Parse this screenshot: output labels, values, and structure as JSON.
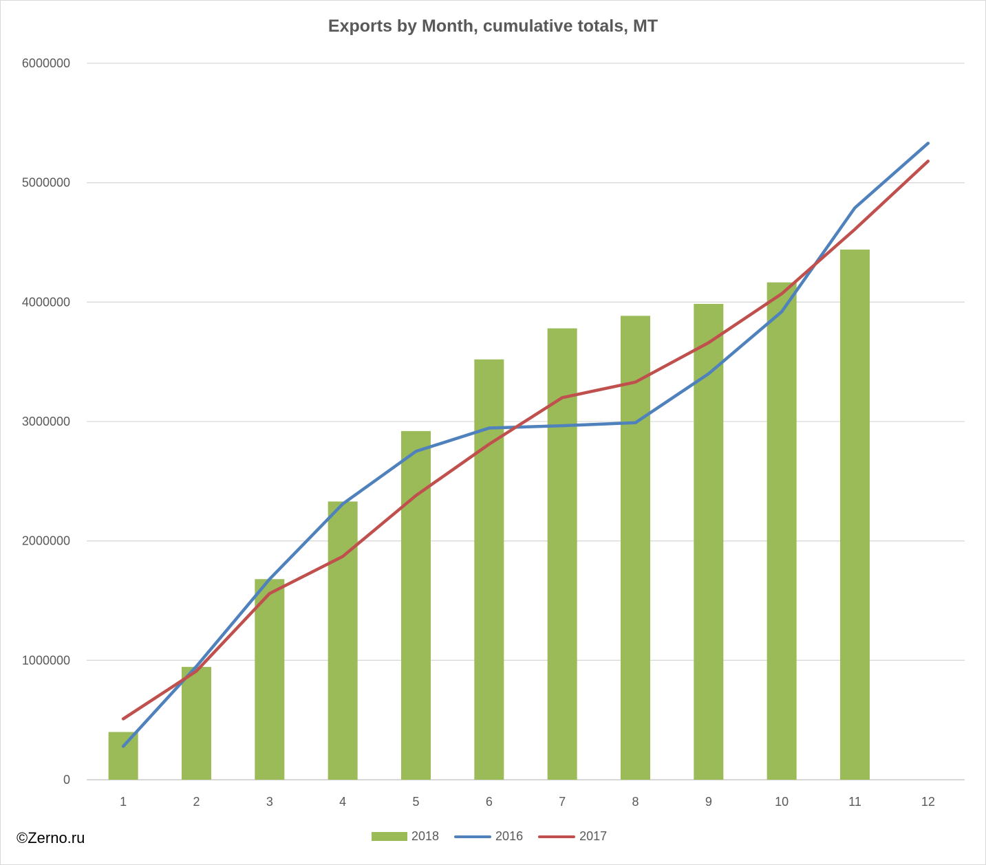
{
  "chart_data": {
    "type": "bar",
    "title": "Exports by Month, cumulative totals, MT",
    "xlabel": "",
    "ylabel": "",
    "categories": [
      "1",
      "2",
      "3",
      "4",
      "5",
      "6",
      "7",
      "8",
      "9",
      "10",
      "11",
      "12"
    ],
    "ylim": [
      0,
      6000000
    ],
    "yticks": [
      "0",
      "1000000",
      "2000000",
      "3000000",
      "4000000",
      "5000000",
      "6000000"
    ],
    "grid": true,
    "legend_position": "bottom",
    "series": [
      {
        "name": "2018",
        "kind": "bar",
        "color": "#9bbb59",
        "values": [
          400000,
          945000,
          1680000,
          2330000,
          2920000,
          3520000,
          3780000,
          3885000,
          3985000,
          4165000,
          4440000,
          null
        ]
      },
      {
        "name": "2016",
        "kind": "line",
        "color": "#4f81bd",
        "values": [
          280000,
          950000,
          1680000,
          2310000,
          2750000,
          2945000,
          2965000,
          2990000,
          3400000,
          3920000,
          4790000,
          5330000
        ]
      },
      {
        "name": "2017",
        "kind": "line",
        "color": "#c0504d",
        "values": [
          510000,
          910000,
          1560000,
          1870000,
          2380000,
          2810000,
          3200000,
          3330000,
          3660000,
          4070000,
          4610000,
          5180000
        ]
      }
    ]
  },
  "credit": "©Zerno.ru"
}
